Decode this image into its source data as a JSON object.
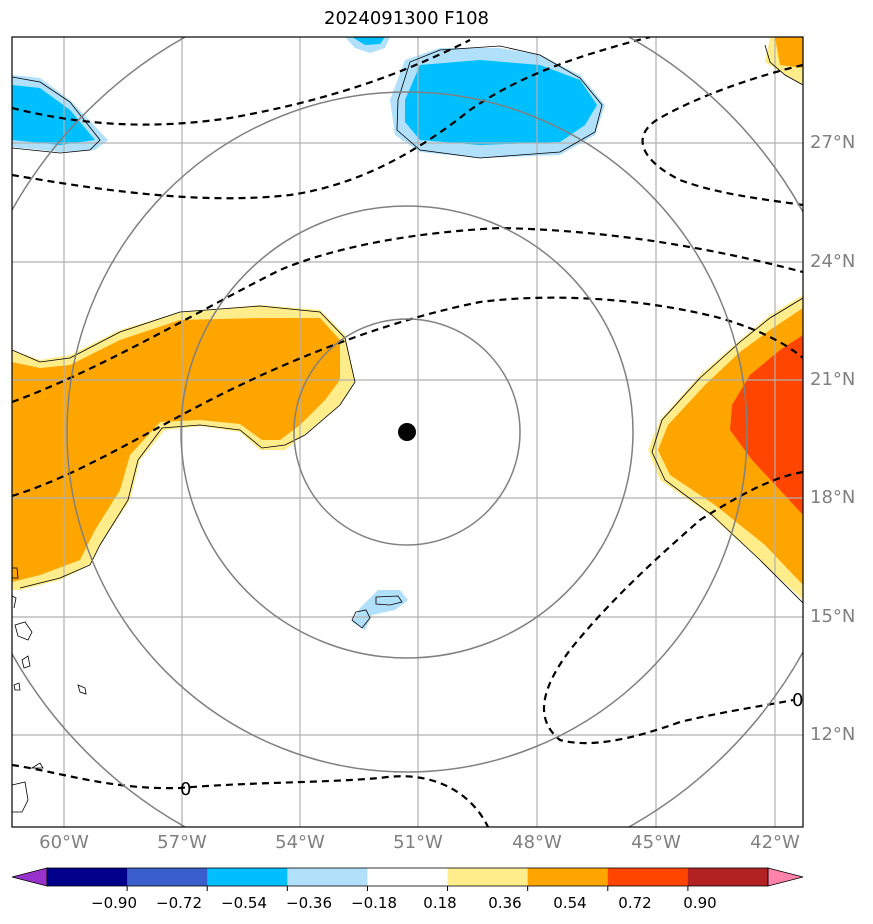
{
  "title": "2024091300 F108",
  "axes": {
    "lon_labels": [
      "60°W",
      "57°W",
      "54°W",
      "51°W",
      "48°W",
      "45°W",
      "42°W"
    ],
    "lat_labels": [
      "27°N",
      "24°N",
      "21°N",
      "18°N",
      "15°N",
      "12°N"
    ]
  },
  "contour_label": "0",
  "colorbar": {
    "labels": [
      "−0.90",
      "−0.72",
      "−0.54",
      "−0.36",
      "−0.18",
      "0.18",
      "0.36",
      "0.54",
      "0.72",
      "0.90"
    ],
    "colors": [
      "#9932cc",
      "#00008b",
      "#3a5fcd",
      "#00bfff",
      "#b0e0fa",
      "#ffffff",
      "#ffec8b",
      "#ffa500",
      "#ff4500",
      "#b22222",
      "#ff82ab"
    ]
  },
  "storm_center": {
    "lon": -51.0,
    "lat": 19.6
  }
}
